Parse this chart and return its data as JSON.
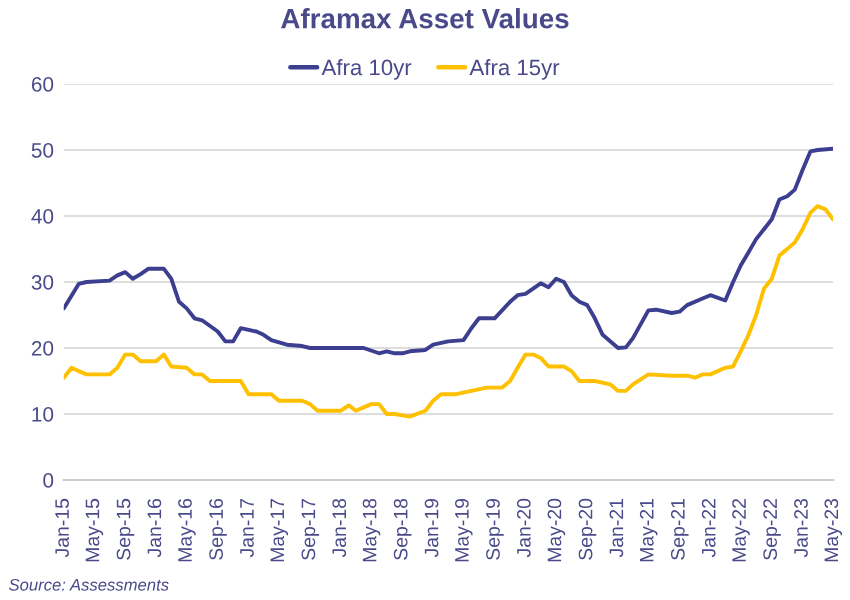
{
  "chart_data": {
    "type": "line",
    "title": "Aframax Asset Values",
    "annotations": [
      "Source: Assessments"
    ],
    "series": [
      {
        "name": "Afra 10yr",
        "color": "#3c3f8f",
        "x": [
          "2015-01",
          "2015-03",
          "2015-04",
          "2015-07",
          "2015-08",
          "2015-09",
          "2015-10",
          "2015-11",
          "2015-12",
          "2016-02",
          "2016-03",
          "2016-04",
          "2016-05",
          "2016-06",
          "2016-07",
          "2016-09",
          "2016-10",
          "2016-11",
          "2016-12",
          "2017-02",
          "2017-03",
          "2017-04",
          "2017-06",
          "2017-08",
          "2017-09",
          "2018-04",
          "2018-06",
          "2018-07",
          "2018-08",
          "2018-09",
          "2018-10",
          "2018-12",
          "2019-01",
          "2019-03",
          "2019-05",
          "2019-06",
          "2019-07",
          "2019-09",
          "2019-11",
          "2019-12",
          "2020-01",
          "2020-03",
          "2020-04",
          "2020-05",
          "2020-06",
          "2020-07",
          "2020-08",
          "2020-09",
          "2020-10",
          "2020-11",
          "2021-01",
          "2021-02",
          "2021-03",
          "2021-05",
          "2021-06",
          "2021-08",
          "2021-09",
          "2021-10",
          "2021-12",
          "2022-01",
          "2022-03",
          "2022-04",
          "2022-05",
          "2022-06",
          "2022-07",
          "2022-08",
          "2022-09",
          "2022-10",
          "2022-11",
          "2022-12",
          "2023-01",
          "2023-02",
          "2023-03",
          "2023-05"
        ],
        "values": [
          26,
          29.7,
          30,
          30.2,
          31,
          31.5,
          30.5,
          31.2,
          32,
          32,
          30.5,
          27,
          26,
          24.5,
          24.2,
          22.5,
          21,
          21,
          23,
          22.5,
          22,
          21.2,
          20.5,
          20.3,
          20,
          20,
          19.2,
          19.5,
          19.2,
          19.2,
          19.5,
          19.7,
          20.5,
          21,
          21.2,
          23,
          24.5,
          24.5,
          27,
          28,
          28.2,
          29.8,
          29.2,
          30.5,
          30,
          28,
          27,
          26.5,
          24.5,
          22,
          20,
          20.1,
          21.5,
          25.7,
          25.8,
          25.3,
          25.5,
          26.5,
          27.5,
          28,
          27.2,
          30,
          32.5,
          34.5,
          36.5,
          38,
          39.5,
          42.5,
          43,
          44,
          47,
          49.8,
          50,
          50.2
        ]
      },
      {
        "name": "Afra 15yr",
        "color": "#ffc000",
        "x": [
          "2015-01",
          "2015-02",
          "2015-03",
          "2015-04",
          "2015-07",
          "2015-08",
          "2015-09",
          "2015-10",
          "2015-11",
          "2016-01",
          "2016-02",
          "2016-03",
          "2016-05",
          "2016-06",
          "2016-07",
          "2016-08",
          "2016-12",
          "2017-01",
          "2017-04",
          "2017-05",
          "2017-08",
          "2017-09",
          "2017-10",
          "2018-01",
          "2018-02",
          "2018-03",
          "2018-04",
          "2018-05",
          "2018-06",
          "2018-07",
          "2018-08",
          "2018-10",
          "2018-12",
          "2019-01",
          "2019-02",
          "2019-04",
          "2019-06",
          "2019-08",
          "2019-10",
          "2019-11",
          "2019-12",
          "2020-01",
          "2020-02",
          "2020-03",
          "2020-04",
          "2020-06",
          "2020-07",
          "2020-08",
          "2020-10",
          "2020-12",
          "2021-01",
          "2021-02",
          "2021-03",
          "2021-05",
          "2021-08",
          "2021-10",
          "2021-11",
          "2021-12",
          "2022-01",
          "2022-03",
          "2022-04",
          "2022-05",
          "2022-06",
          "2022-07",
          "2022-08",
          "2022-09",
          "2022-10",
          "2022-11",
          "2022-12",
          "2023-01",
          "2023-02",
          "2023-03",
          "2023-04",
          "2023-05"
        ],
        "values": [
          15.5,
          17,
          16.5,
          16,
          16,
          17,
          19,
          19,
          18,
          18,
          19,
          17.2,
          17,
          16,
          16,
          15,
          15,
          13,
          13,
          12,
          12,
          11.5,
          10.5,
          10.5,
          11.3,
          10.5,
          11,
          11.5,
          11.5,
          10,
          10,
          9.6,
          10.5,
          12,
          13,
          13,
          13.5,
          14,
          14,
          15,
          17,
          19,
          19,
          18.5,
          17.2,
          17.2,
          16.5,
          15,
          15,
          14.5,
          13.5,
          13.5,
          14.5,
          16,
          15.8,
          15.8,
          15.5,
          16,
          16,
          17,
          17.2,
          19.5,
          22,
          25,
          29,
          30.5,
          34,
          35,
          36,
          38,
          40.5,
          41.5,
          41,
          39.5
        ]
      }
    ],
    "xlim": [
      "2015-01",
      "2023-05"
    ],
    "xticks": [
      {
        "value": "2015-01",
        "label": "Jan-15"
      },
      {
        "value": "2015-05",
        "label": "May-15"
      },
      {
        "value": "2015-09",
        "label": "Sep-15"
      },
      {
        "value": "2016-01",
        "label": "Jan-16"
      },
      {
        "value": "2016-05",
        "label": "May-16"
      },
      {
        "value": "2016-09",
        "label": "Sep-16"
      },
      {
        "value": "2017-01",
        "label": "Jan-17"
      },
      {
        "value": "2017-05",
        "label": "May-17"
      },
      {
        "value": "2017-09",
        "label": "Sep-17"
      },
      {
        "value": "2018-01",
        "label": "Jan-18"
      },
      {
        "value": "2018-05",
        "label": "May-18"
      },
      {
        "value": "2018-09",
        "label": "Sep-18"
      },
      {
        "value": "2019-01",
        "label": "Jan-19"
      },
      {
        "value": "2019-05",
        "label": "May-19"
      },
      {
        "value": "2019-09",
        "label": "Sep-19"
      },
      {
        "value": "2020-01",
        "label": "Jan-20"
      },
      {
        "value": "2020-05",
        "label": "May-20"
      },
      {
        "value": "2020-09",
        "label": "Sep-20"
      },
      {
        "value": "2021-01",
        "label": "Jan-21"
      },
      {
        "value": "2021-05",
        "label": "May-21"
      },
      {
        "value": "2021-09",
        "label": "Sep-21"
      },
      {
        "value": "2022-01",
        "label": "Jan-22"
      },
      {
        "value": "2022-05",
        "label": "May-22"
      },
      {
        "value": "2022-09",
        "label": "Sep-22"
      },
      {
        "value": "2023-01",
        "label": "Jan-23"
      },
      {
        "value": "2023-05",
        "label": "May-23"
      }
    ],
    "ylim": [
      0,
      60
    ],
    "yticks": [
      0,
      10,
      20,
      30,
      40,
      50,
      60
    ],
    "grid": "y",
    "legend": "top"
  }
}
